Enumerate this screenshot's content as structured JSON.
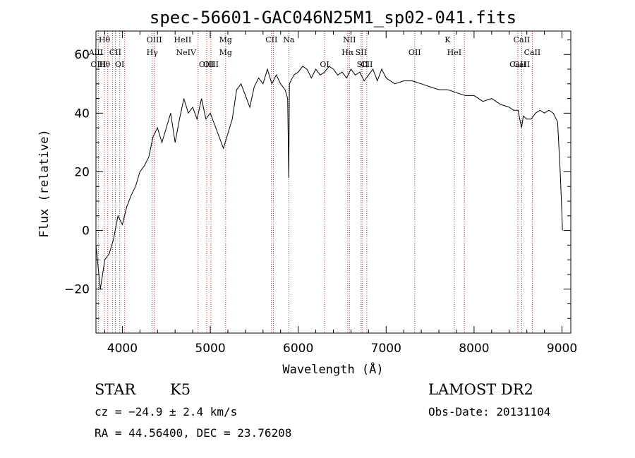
{
  "chart_data": {
    "type": "line",
    "title": "spec-56601-GAC046N25M1_sp02-041.fits",
    "xlabel": "Wavelength (Å)",
    "ylabel": "Flux (relative)",
    "xlim": [
      3700,
      9100
    ],
    "ylim": [
      -35,
      68
    ],
    "xticks": [
      4000,
      5000,
      6000,
      7000,
      8000,
      9000
    ],
    "yticks": [
      -20,
      0,
      20,
      40,
      60
    ],
    "ytick_labels": [
      "−20",
      "0",
      "20",
      "40",
      "60"
    ],
    "series": [
      {
        "x": [
          3700,
          3750,
          3800,
          3850,
          3900,
          3950,
          4000,
          4050,
          4100,
          4150,
          4200,
          4250,
          4300,
          4350,
          4400,
          4450,
          4500,
          4550,
          4600,
          4650,
          4700,
          4750,
          4800,
          4850,
          4900,
          4950,
          5000,
          5050,
          5100,
          5150,
          5200,
          5250,
          5300,
          5350,
          5400,
          5450,
          5500,
          5550,
          5600,
          5650,
          5700,
          5750,
          5800,
          5850,
          5880,
          5893,
          5900,
          5950,
          6000,
          6050,
          6100,
          6150,
          6200,
          6250,
          6300,
          6350,
          6400,
          6450,
          6500,
          6550,
          6600,
          6650,
          6700,
          6750,
          6800,
          6850,
          6900,
          6950,
          7000,
          7100,
          7200,
          7300,
          7400,
          7500,
          7600,
          7700,
          7800,
          7900,
          8000,
          8100,
          8200,
          8300,
          8400,
          8450,
          8500,
          8540,
          8560,
          8600,
          8650,
          8700,
          8750,
          8800,
          8850,
          8900,
          8950,
          8980,
          9000,
          9005
        ],
        "y": [
          -5,
          -20,
          -10,
          -8,
          -3,
          5,
          2,
          8,
          12,
          15,
          20,
          22,
          25,
          32,
          35,
          30,
          35,
          40,
          30,
          38,
          45,
          40,
          42,
          38,
          45,
          38,
          40,
          36,
          32,
          28,
          33,
          38,
          48,
          50,
          46,
          42,
          49,
          52,
          50,
          55,
          50,
          53,
          50,
          48,
          45,
          18,
          50,
          53,
          54,
          56,
          55,
          52,
          55,
          53,
          54,
          56,
          55,
          53,
          54,
          52,
          55,
          53,
          54,
          51,
          53,
          55,
          51,
          55,
          52,
          50,
          51,
          51,
          50,
          49,
          48,
          48,
          47,
          46,
          46,
          44,
          45,
          43,
          42,
          41,
          41,
          35,
          39,
          38,
          38,
          40,
          41,
          40,
          41,
          40,
          37,
          20,
          5,
          0
        ]
      }
    ],
    "lines_row1": [
      {
        "label": "Hθ",
        "x": 3797
      },
      {
        "label": "OIII",
        "x": 4363
      },
      {
        "label": "HeII",
        "x": 4686
      },
      {
        "label": "Mg",
        "x": 5175
      },
      {
        "label": "CII",
        "x": 5696
      },
      {
        "label": "Na",
        "x": 5893
      },
      {
        "label": "NII",
        "x": 6583
      },
      {
        "label": "K",
        "x": 7699
      },
      {
        "label": "CaII",
        "x": 8542
      }
    ],
    "lines_row2": [
      {
        "label": "AlII",
        "x": 3700
      },
      {
        "label": "CII",
        "x": 3920
      },
      {
        "label": "Hγ",
        "x": 4340
      },
      {
        "label": "NeIV",
        "x": 4725
      },
      {
        "label": "Mg",
        "x": 5175
      },
      {
        "label": "Hα",
        "x": 6563
      },
      {
        "label": "SII",
        "x": 6716
      },
      {
        "label": "OII",
        "x": 7325
      },
      {
        "label": "HeI",
        "x": 7775
      },
      {
        "label": "CaII",
        "x": 8662
      }
    ],
    "lines_row3": [
      {
        "label": "OIII",
        "x": 3727
      },
      {
        "label": "Hθ",
        "x": 3797
      },
      {
        "label": "OI",
        "x": 3970
      },
      {
        "label": "OIII",
        "x": 4959
      },
      {
        "label": "OIII",
        "x": 5007
      },
      {
        "label": "OI",
        "x": 6300
      },
      {
        "label": "SII",
        "x": 6731
      },
      {
        "label": "CII",
        "x": 6780
      },
      {
        "label": "CaII",
        "x": 8498
      },
      {
        "label": "CaII",
        "x": 8542
      }
    ],
    "marker_lines": [
      3727,
      3797,
      3835,
      3889,
      3920,
      3970,
      4026,
      4340,
      4363,
      4861,
      4959,
      5007,
      5175,
      5696,
      5719,
      5893,
      6300,
      6563,
      6583,
      6716,
      6731,
      6780,
      7325,
      7775,
      7890,
      8498,
      8542,
      8662
    ]
  },
  "info": {
    "class_label": "STAR",
    "subclass": "K5",
    "survey": "LAMOST DR2",
    "cz": "cz = −24.9 ± 2.4 km/s",
    "obsdate": "Obs-Date: 20131104",
    "radec": "RA =  44.56400, DEC =  23.76208"
  }
}
